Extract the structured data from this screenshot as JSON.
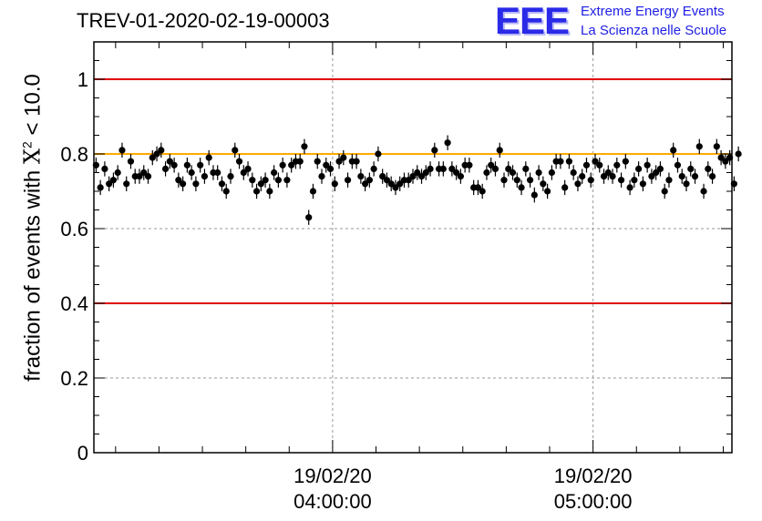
{
  "header": {
    "run_title": "TREV-01-2020-02-19-00003",
    "logo_mark": "EEE",
    "logo_line1": "Extreme Energy Events",
    "logo_line2": "La Scienza nelle Scuole"
  },
  "ylabel_parts": {
    "prefix": "fraction of events with ",
    "symbol": "X",
    "superscript": "2",
    "suffix": " < 10.0"
  },
  "colors": {
    "threshold_red": "#e00000",
    "reference_orange": "#ffaa00",
    "marker": "#000000",
    "logo_blue": "#2a2ae8"
  },
  "chart_data": {
    "type": "scatter",
    "xlabel": "",
    "ylabel": "fraction of events with X² < 10.0",
    "x_start": "2020-02-19 03:05:00",
    "x_end": "2020-02-19 05:32:00",
    "ylim": [
      0,
      1.1
    ],
    "grid": true,
    "y_ticks": [
      "0",
      "0.2",
      "0.4",
      "0.6",
      "0.8",
      "1"
    ],
    "x_tick_labels": [
      {
        "date": "19/02/20",
        "time": "04:00:00"
      },
      {
        "date": "19/02/20",
        "time": "05:00:00"
      }
    ],
    "horizontal_lines": [
      {
        "y": 1.0,
        "color": "#e00000"
      },
      {
        "y": 0.4,
        "color": "#e00000"
      },
      {
        "y": 0.8,
        "color": "#ffaa00"
      }
    ],
    "error": 0.02,
    "series": [
      {
        "x_step_minutes": 1,
        "values": [
          0.77,
          0.71,
          0.76,
          0.72,
          0.73,
          0.75,
          0.81,
          0.72,
          0.78,
          0.74,
          0.74,
          0.75,
          0.74,
          0.79,
          0.8,
          0.81,
          0.76,
          0.78,
          0.77,
          0.73,
          0.72,
          0.77,
          0.75,
          0.72,
          0.77,
          0.74,
          0.79,
          0.75,
          0.75,
          0.72,
          0.7,
          0.74,
          0.81,
          0.78,
          0.75,
          0.76,
          0.73,
          0.7,
          0.72,
          0.73,
          0.7,
          0.75,
          0.73,
          0.77,
          0.73,
          0.77,
          0.78,
          0.78,
          0.82,
          0.63,
          0.7,
          0.78,
          0.74,
          0.77,
          0.76,
          0.72,
          0.78,
          0.79,
          0.73,
          0.78,
          0.78,
          0.74,
          0.72,
          0.73,
          0.76,
          0.8,
          0.74,
          0.73,
          0.72,
          0.71,
          0.72,
          0.73,
          0.73,
          0.74,
          0.75,
          0.74,
          0.75,
          0.76,
          0.81,
          0.76,
          0.76,
          0.83,
          0.76,
          0.75,
          0.74,
          0.77,
          0.77,
          0.71,
          0.71,
          0.7,
          0.75,
          0.77,
          0.76,
          0.81,
          0.73,
          0.76,
          0.75,
          0.73,
          0.71,
          0.76,
          0.73,
          0.69,
          0.75,
          0.72,
          0.7,
          0.75,
          0.78,
          0.78,
          0.71,
          0.78,
          0.75,
          0.72,
          0.74,
          0.77,
          0.73,
          0.78,
          0.77,
          0.74,
          0.75,
          0.74,
          0.77,
          0.73,
          0.78,
          0.71,
          0.73,
          0.76,
          0.72,
          0.77,
          0.74,
          0.75,
          0.76,
          0.7,
          0.73,
          0.81,
          0.77,
          0.74,
          0.72,
          0.76,
          0.74,
          0.82,
          0.7,
          0.76,
          0.74,
          0.82,
          0.79,
          0.78,
          0.79,
          0.72,
          0.8
        ]
      }
    ]
  }
}
